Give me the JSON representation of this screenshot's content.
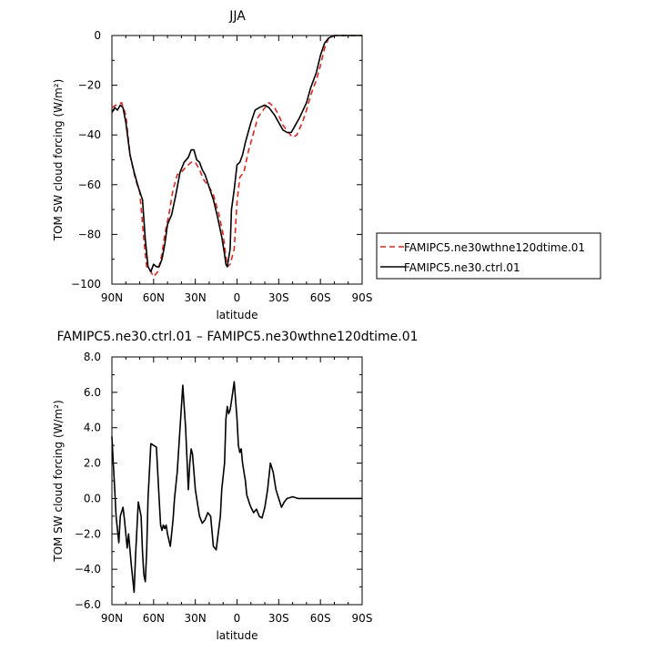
{
  "figure": {
    "title": "JJA",
    "bottom_title": "FAMIPC5.ne30.ctrl.01 – FAMIPC5.ne30wthne120dtime.01"
  },
  "chart_data": [
    {
      "type": "line",
      "title": "JJA",
      "xlabel": "latitude",
      "ylabel": "TOM SW cloud forcing (W/m²)",
      "xlim": [
        90,
        -90
      ],
      "ylim": [
        -100,
        0
      ],
      "x_ticks": [
        90,
        60,
        30,
        0,
        -30,
        -60,
        -90
      ],
      "x_tick_labels": [
        "90N",
        "60N",
        "30N",
        "0",
        "30S",
        "60S",
        "90S"
      ],
      "y_ticks": [
        0,
        -20,
        -40,
        -60,
        -80,
        -100
      ],
      "y_tick_labels": [
        "0",
        "−20",
        "−40",
        "−60",
        "−80",
        "−100"
      ],
      "legend_position": "right",
      "series": [
        {
          "name": "FAMIPC5.ne30wthne120dtime.01",
          "color": "#e8211b",
          "dash": "dashed",
          "x": [
            90,
            87,
            83,
            80,
            77,
            73,
            70,
            67,
            65,
            62,
            60,
            57,
            54,
            52,
            49,
            46,
            43,
            40,
            37,
            33,
            30,
            27,
            24,
            20,
            17,
            13,
            10,
            7,
            5,
            2,
            0,
            -2,
            -5,
            -8,
            -12,
            -15,
            -20,
            -23,
            -27,
            -30,
            -33,
            -37,
            -40,
            -43,
            -47,
            -50,
            -53,
            -57,
            -60,
            -63,
            -66,
            -70,
            -75,
            -80,
            -90
          ],
          "y": [
            -29,
            -28,
            -27,
            -32,
            -48,
            -58,
            -63,
            -82,
            -93,
            -95,
            -97,
            -95,
            -88,
            -80,
            -72,
            -62,
            -56,
            -55,
            -53,
            -51,
            -51,
            -54,
            -58,
            -61,
            -64,
            -72,
            -80,
            -93,
            -92,
            -86,
            -67,
            -57,
            -55,
            -47,
            -39,
            -33,
            -29,
            -27,
            -29,
            -32,
            -36,
            -39,
            -41,
            -40,
            -35,
            -30,
            -24,
            -18,
            -12,
            -5,
            -1,
            0,
            0,
            0,
            0
          ]
        },
        {
          "name": "FAMIPC5.ne30.ctrl.01",
          "color": "#000000",
          "dash": "solid",
          "x": [
            90,
            88,
            86,
            84,
            82,
            80,
            77,
            74,
            71,
            68,
            66,
            64,
            62,
            60,
            58,
            56,
            54,
            52,
            50,
            47,
            44,
            41,
            38,
            35,
            33,
            31,
            29,
            27,
            25,
            23,
            20,
            17,
            14,
            11,
            9,
            8,
            7,
            5,
            4,
            2,
            0,
            -2,
            -4,
            -6,
            -8,
            -10,
            -13,
            -16,
            -20,
            -23,
            -27,
            -30,
            -33,
            -36,
            -39,
            -42,
            -45,
            -50,
            -53,
            -57,
            -60,
            -63,
            -66,
            -70,
            -75,
            -80,
            -90
          ],
          "y": [
            -31,
            -29,
            -30,
            -28,
            -29,
            -35,
            -48,
            -55,
            -61,
            -66,
            -82,
            -93,
            -95,
            -92,
            -93,
            -93,
            -90,
            -84,
            -76,
            -72,
            -64,
            -55,
            -51,
            -49,
            -46,
            -46,
            -50,
            -51,
            -54,
            -56,
            -61,
            -66,
            -73,
            -81,
            -88,
            -92,
            -93,
            -86,
            -70,
            -62,
            -52,
            -51,
            -48,
            -43,
            -39,
            -35,
            -30,
            -29,
            -28,
            -29,
            -32,
            -35,
            -38,
            -39,
            -39,
            -36,
            -33,
            -27,
            -21,
            -15,
            -8,
            -3,
            -1,
            0,
            0,
            0,
            0
          ]
        }
      ]
    },
    {
      "type": "line",
      "title": "FAMIPC5.ne30.ctrl.01 – FAMIPC5.ne30wthne120dtime.01",
      "xlabel": "latitude",
      "ylabel": "TOM SW cloud forcing (W/m²)",
      "xlim": [
        90,
        -90
      ],
      "ylim": [
        -6.0,
        8.0
      ],
      "x_ticks": [
        90,
        60,
        30,
        0,
        -30,
        -60,
        -90
      ],
      "x_tick_labels": [
        "90N",
        "60N",
        "30N",
        "0",
        "30S",
        "60S",
        "90S"
      ],
      "y_ticks": [
        8,
        6,
        4,
        2,
        0,
        -2,
        -4,
        -6
      ],
      "y_tick_labels": [
        "8.0",
        "6.0",
        "4.0",
        "2.0",
        "0.0",
        "−2.0",
        "−4.0",
        "−6.0"
      ],
      "series": [
        {
          "color": "#000000",
          "dash": "solid",
          "x": [
            90,
            89,
            88,
            87,
            85,
            84,
            82,
            81,
            79,
            78,
            76,
            74,
            73,
            71,
            69,
            68,
            67,
            66,
            65,
            64,
            62,
            60,
            58,
            56,
            55,
            54,
            53,
            52,
            51,
            50,
            48,
            46,
            45,
            43,
            41,
            39,
            37,
            35,
            34,
            33,
            32,
            30,
            28,
            27,
            25,
            23,
            21,
            19,
            17,
            15,
            12,
            11,
            9,
            8,
            7,
            6,
            5,
            4,
            2,
            0,
            -1,
            -2,
            -3,
            -4,
            -6,
            -7,
            -9,
            -10,
            -12,
            -14,
            -16,
            -18,
            -20,
            -22,
            -24,
            -26,
            -28,
            -30,
            -32,
            -34,
            -36,
            -38,
            -40,
            -42,
            -44,
            -46,
            -49,
            -52,
            -55,
            -57,
            -60,
            -63,
            -66,
            -70,
            -75,
            -80,
            -90
          ],
          "y": [
            3.5,
            2.0,
            0.5,
            -1.0,
            -2.5,
            -1.0,
            -0.5,
            -1.2,
            -2.8,
            -2.0,
            -3.8,
            -5.3,
            -3.2,
            -0.2,
            -1.0,
            -3.0,
            -4.3,
            -4.7,
            -3.0,
            0.0,
            3.1,
            3.0,
            2.9,
            0.0,
            -1.5,
            -1.8,
            -1.5,
            -1.7,
            -1.5,
            -2.0,
            -2.7,
            -1.2,
            0.0,
            1.5,
            4.0,
            6.4,
            4.0,
            0.5,
            2.0,
            2.8,
            2.5,
            0.5,
            -0.5,
            -1.0,
            -1.4,
            -1.2,
            -0.8,
            -1.0,
            -2.7,
            -2.9,
            -1.0,
            0.5,
            2.0,
            4.5,
            5.2,
            4.8,
            5.0,
            5.5,
            6.6,
            4.5,
            3.0,
            2.6,
            2.8,
            2.0,
            1.0,
            0.2,
            -0.3,
            -0.5,
            -0.8,
            -0.6,
            -1.0,
            -1.1,
            -0.5,
            0.5,
            2.0,
            1.5,
            0.5,
            0.0,
            -0.5,
            -0.2,
            0.0,
            0.05,
            0.1,
            0.05,
            0.0,
            0.0,
            0.0,
            0.0,
            0.0,
            0.0,
            0.0,
            0.0,
            0.0,
            0.0,
            0.0,
            0.0,
            0.0
          ]
        }
      ]
    }
  ]
}
